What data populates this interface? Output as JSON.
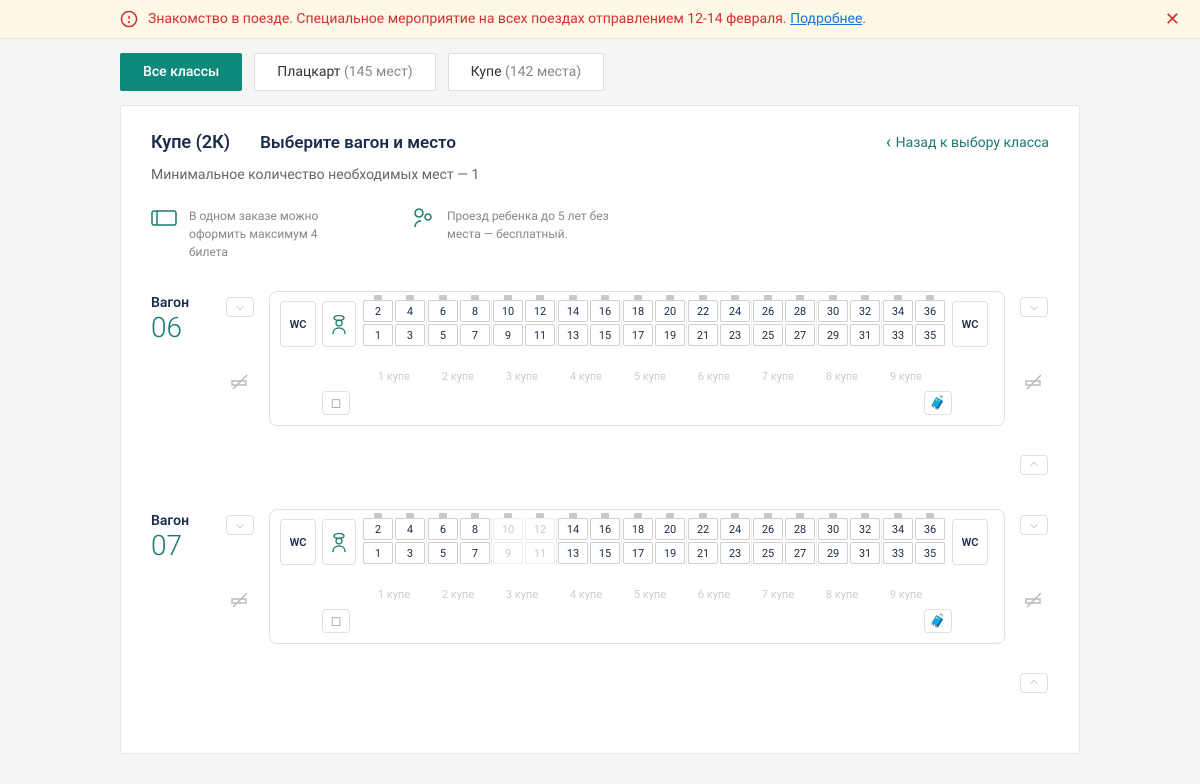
{
  "notice": {
    "text": "Знакомство в поезде. Специальное мероприятие на всех поездах отправлением 12-14 февраля. ",
    "link": "Подробнее",
    "dot": "."
  },
  "tabs": [
    {
      "label": "Все классы",
      "count": "",
      "active": true
    },
    {
      "label": "Плацкарт",
      "count": "(145 мест)",
      "active": false
    },
    {
      "label": "Купе",
      "count": "(142 места)",
      "active": false
    }
  ],
  "panel": {
    "class_title": "Купе (2К)",
    "select_title": "Выберите вагон и место",
    "back": "Назад к выбору класса",
    "sub_note": "Минимальное количество необходимых мест — 1"
  },
  "info": [
    {
      "text": "В одном заказе можно оформить максимум 4 билета"
    },
    {
      "text": "Проезд ребенка до 5 лет без места — бесплатный."
    }
  ],
  "wagon_label": "Вагон",
  "wc": "WC",
  "coupe_word": "купе",
  "wagons": [
    {
      "num": "06",
      "coupes": [
        {
          "upper": [
            {
              "n": "2",
              "m": 1
            },
            {
              "n": "4",
              "m": 1
            }
          ],
          "lower": [
            {
              "n": "1"
            },
            {
              "n": "3"
            }
          ]
        },
        {
          "upper": [
            {
              "n": "6",
              "m": 1
            },
            {
              "n": "8",
              "m": 1
            }
          ],
          "lower": [
            {
              "n": "5"
            },
            {
              "n": "7"
            }
          ]
        },
        {
          "upper": [
            {
              "n": "10",
              "m": 1
            },
            {
              "n": "12",
              "m": 1
            }
          ],
          "lower": [
            {
              "n": "9"
            },
            {
              "n": "11"
            }
          ]
        },
        {
          "upper": [
            {
              "n": "14",
              "m": 1
            },
            {
              "n": "16",
              "m": 1
            }
          ],
          "lower": [
            {
              "n": "13"
            },
            {
              "n": "15"
            }
          ]
        },
        {
          "upper": [
            {
              "n": "18",
              "m": 1
            },
            {
              "n": "20",
              "m": 1
            }
          ],
          "lower": [
            {
              "n": "17"
            },
            {
              "n": "19"
            }
          ]
        },
        {
          "upper": [
            {
              "n": "22",
              "m": 1
            },
            {
              "n": "24",
              "m": 1
            }
          ],
          "lower": [
            {
              "n": "21"
            },
            {
              "n": "23"
            }
          ]
        },
        {
          "upper": [
            {
              "n": "26",
              "m": 1
            },
            {
              "n": "28",
              "m": 1
            }
          ],
          "lower": [
            {
              "n": "25"
            },
            {
              "n": "27"
            }
          ]
        },
        {
          "upper": [
            {
              "n": "30",
              "m": 1
            },
            {
              "n": "32",
              "m": 1
            }
          ],
          "lower": [
            {
              "n": "29"
            },
            {
              "n": "31"
            }
          ]
        },
        {
          "upper": [
            {
              "n": "34",
              "m": 1
            },
            {
              "n": "36",
              "m": 1
            }
          ],
          "lower": [
            {
              "n": "33"
            },
            {
              "n": "35"
            }
          ]
        }
      ]
    },
    {
      "num": "07",
      "coupes": [
        {
          "upper": [
            {
              "n": "2",
              "m": 1
            },
            {
              "n": "4",
              "m": 1
            }
          ],
          "lower": [
            {
              "n": "1"
            },
            {
              "n": "3"
            }
          ]
        },
        {
          "upper": [
            {
              "n": "6",
              "m": 1
            },
            {
              "n": "8",
              "m": 1
            }
          ],
          "lower": [
            {
              "n": "5"
            },
            {
              "n": "7"
            }
          ]
        },
        {
          "upper": [
            {
              "n": "10",
              "m": 1,
              "u": 1
            },
            {
              "n": "12",
              "m": 1,
              "u": 1
            }
          ],
          "lower": [
            {
              "n": "9",
              "u": 1
            },
            {
              "n": "11",
              "u": 1
            }
          ]
        },
        {
          "upper": [
            {
              "n": "14",
              "m": 1
            },
            {
              "n": "16",
              "m": 1
            }
          ],
          "lower": [
            {
              "n": "13"
            },
            {
              "n": "15"
            }
          ]
        },
        {
          "upper": [
            {
              "n": "18",
              "m": 1
            },
            {
              "n": "20",
              "m": 1
            }
          ],
          "lower": [
            {
              "n": "17"
            },
            {
              "n": "19"
            }
          ]
        },
        {
          "upper": [
            {
              "n": "22",
              "m": 1
            },
            {
              "n": "24",
              "m": 1
            }
          ],
          "lower": [
            {
              "n": "21"
            },
            {
              "n": "23"
            }
          ]
        },
        {
          "upper": [
            {
              "n": "26",
              "m": 1
            },
            {
              "n": "28",
              "m": 1
            }
          ],
          "lower": [
            {
              "n": "25"
            },
            {
              "n": "27"
            }
          ]
        },
        {
          "upper": [
            {
              "n": "30",
              "m": 1
            },
            {
              "n": "32",
              "m": 1
            }
          ],
          "lower": [
            {
              "n": "29"
            },
            {
              "n": "31"
            }
          ]
        },
        {
          "upper": [
            {
              "n": "34",
              "m": 1
            },
            {
              "n": "36",
              "m": 1
            }
          ],
          "lower": [
            {
              "n": "33"
            },
            {
              "n": "35"
            }
          ]
        }
      ]
    }
  ]
}
